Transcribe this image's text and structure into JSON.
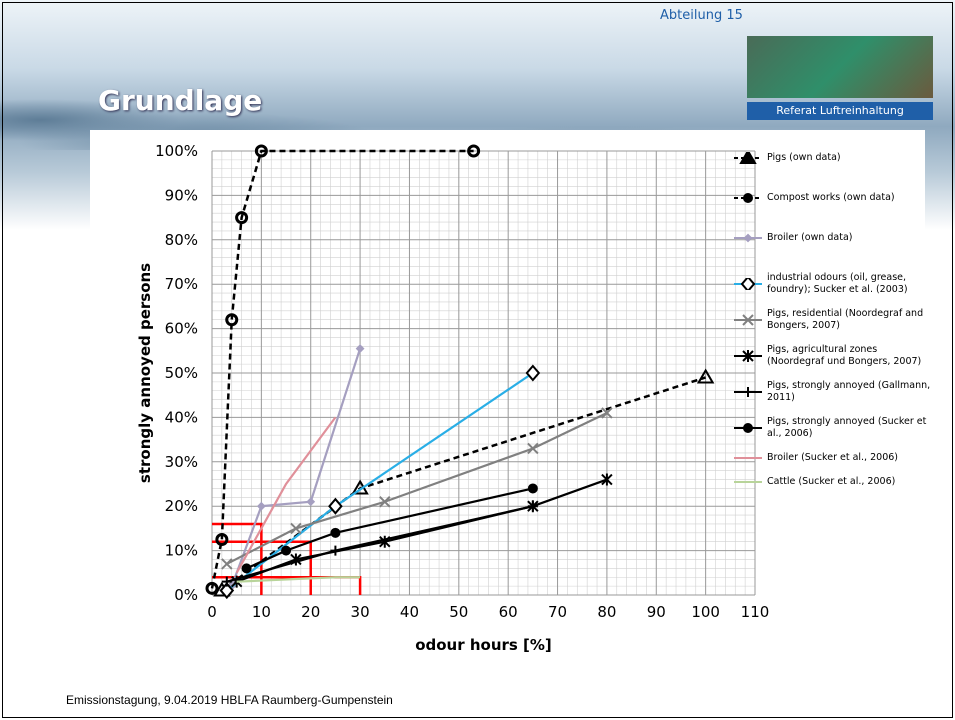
{
  "slide": {
    "title": "Grundlage",
    "department": "Abteilung 15",
    "unit": "Referat Luftreinhaltung",
    "footer": "Emissionstagung, 9.04.2019 HBLFA Raumberg-Gumpenstein"
  },
  "chart_data": {
    "type": "line",
    "xlabel": "odour hours [%]",
    "ylabel": "strongly annoyed persons",
    "xlim": [
      0,
      110
    ],
    "ylim": [
      0,
      100
    ],
    "xticks": [
      0,
      10,
      20,
      30,
      40,
      50,
      60,
      70,
      80,
      90,
      100,
      110
    ],
    "yticks": [
      {
        "value": 0,
        "label": "0%"
      },
      {
        "value": 10,
        "label": "10%"
      },
      {
        "value": 20,
        "label": "20%"
      },
      {
        "value": 30,
        "label": "30%"
      },
      {
        "value": 40,
        "label": "40%"
      },
      {
        "value": 50,
        "label": "50%"
      },
      {
        "value": 60,
        "label": "60%"
      },
      {
        "value": 70,
        "label": "70%"
      },
      {
        "value": 80,
        "label": "80%"
      },
      {
        "value": 90,
        "label": "90%"
      },
      {
        "value": 100,
        "label": "100%"
      }
    ],
    "grid": true,
    "minor_grid": true,
    "legend": "right",
    "series": [
      {
        "name": "Pigs (own data)",
        "color": "#000000",
        "dash": true,
        "marker": "triangle",
        "x": [
          2,
          30,
          100
        ],
        "values": [
          1,
          24,
          49
        ]
      },
      {
        "name": "Compost works (own data)",
        "color": "#000000",
        "dash": true,
        "marker": "circle",
        "x": [
          0,
          2,
          4,
          6,
          10,
          53
        ],
        "values": [
          1.5,
          12.5,
          62,
          85,
          100,
          100
        ]
      },
      {
        "name": "Broiler (own data)",
        "color": "#a59fc0",
        "dash": false,
        "marker": "smalldiamond",
        "x": [
          4,
          10,
          20,
          30
        ],
        "values": [
          2,
          20,
          21,
          55.5
        ]
      },
      {
        "name": "industrial odours (oil, grease, foundry); Sucker et al. (2003)",
        "color": "#29aee6",
        "dash": false,
        "marker": "diamond",
        "x": [
          3,
          25,
          65
        ],
        "values": [
          1,
          20,
          50
        ]
      },
      {
        "name": "Pigs, residential (Noordegraf and Bongers, 2007)",
        "color": "#808080",
        "dash": false,
        "marker": "x",
        "x": [
          3,
          17,
          35,
          65,
          80
        ],
        "values": [
          7,
          15,
          21,
          33,
          41
        ]
      },
      {
        "name": "Pigs, agricultural zones (Noordegraf und Bongers, 2007)",
        "color": "#000000",
        "dash": false,
        "marker": "asterisk",
        "x": [
          5,
          17,
          35,
          65,
          80
        ],
        "values": [
          3,
          8,
          12,
          20,
          26
        ]
      },
      {
        "name": "Pigs, strongly annoyed (Gallmann, 2011)",
        "color": "#000000",
        "dash": false,
        "marker": "plus",
        "x": [
          3,
          25,
          65
        ],
        "values": [
          3,
          10,
          20
        ]
      },
      {
        "name": "Pigs, strongly annoyed (Sucker et al., 2006)",
        "color": "#000000",
        "dash": false,
        "marker": "dot",
        "x": [
          7,
          15,
          25,
          65
        ],
        "values": [
          6,
          10,
          14,
          24
        ]
      },
      {
        "name": "Broiler (Sucker et al., 2006)",
        "color": "#e0909a",
        "dash": false,
        "marker": "none",
        "x": [
          5,
          15,
          25
        ],
        "values": [
          5,
          25,
          40
        ]
      },
      {
        "name": "Cattle (Sucker et al., 2006)",
        "color": "#b8d49a",
        "dash": false,
        "marker": "none",
        "x": [
          5,
          25,
          30
        ],
        "values": [
          3,
          4,
          4
        ]
      }
    ],
    "limits": {
      "color": "#ff0000",
      "x": [
        10,
        20,
        30
      ],
      "values": [
        16,
        12,
        4
      ]
    }
  }
}
